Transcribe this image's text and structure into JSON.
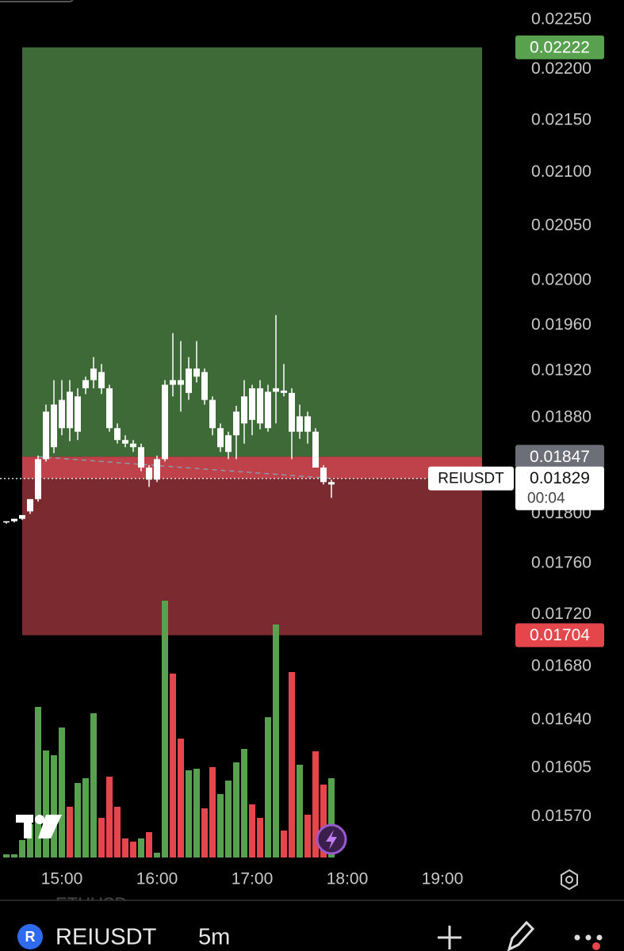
{
  "symbol": "REIUSDT",
  "interval": "5m",
  "watermark": "ETHUSD",
  "chart_data": {
    "type": "candlestick",
    "x": [
      865,
      870,
      875,
      880,
      885,
      890,
      895,
      900,
      905,
      910,
      915,
      920,
      925,
      930,
      935,
      940,
      945,
      950,
      955,
      960,
      965,
      970,
      975,
      980,
      985,
      990,
      995,
      1000,
      1005,
      1010,
      1015,
      1020,
      1025,
      1030,
      1035,
      1040,
      1045,
      1050,
      1055,
      1060,
      1065,
      1070
    ],
    "open": [
      0.01793,
      0.01794,
      0.01796,
      0.01802,
      0.01812,
      0.01845,
      0.01855,
      0.01871,
      0.01871,
      0.01898,
      0.01905,
      0.01912,
      0.01919,
      0.01905,
      0.01871,
      0.01861,
      0.01858,
      0.01855,
      0.01838,
      0.01828,
      0.01845,
      0.01908,
      0.01912,
      0.01901,
      0.01922,
      0.01919,
      0.01895,
      0.01871,
      0.01865,
      0.01865,
      0.01898,
      0.01878,
      0.01905,
      0.01902,
      0.01902,
      0.01903,
      0.01901,
      0.01881,
      0.01881,
      0.01868,
      0.01838,
      0.01826
    ],
    "high": [
      0.01794,
      0.01796,
      0.01799,
      0.01812,
      0.01848,
      0.01891,
      0.01912,
      0.01912,
      0.01912,
      0.01905,
      0.01915,
      0.01932,
      0.01926,
      0.01908,
      0.01875,
      0.01865,
      0.01861,
      0.01858,
      0.0184,
      0.01848,
      0.01912,
      0.01953,
      0.01946,
      0.01932,
      0.01946,
      0.01922,
      0.01898,
      0.01875,
      0.01868,
      0.0189,
      0.01912,
      0.01908,
      0.01912,
      0.01908,
      0.01969,
      0.01926,
      0.01905,
      0.01891,
      0.01885,
      0.01871,
      0.0184,
      0.01828
    ],
    "low": [
      0.01792,
      0.01793,
      0.01795,
      0.018,
      0.0181,
      0.01843,
      0.0185,
      0.01865,
      0.0186,
      0.01861,
      0.019,
      0.01905,
      0.019,
      0.01868,
      0.01858,
      0.01855,
      0.01851,
      0.01835,
      0.01822,
      0.01826,
      0.01843,
      0.01898,
      0.01885,
      0.01895,
      0.0191,
      0.01891,
      0.01865,
      0.01851,
      0.01845,
      0.01845,
      0.01858,
      0.01865,
      0.0187,
      0.01868,
      0.01875,
      0.01898,
      0.01845,
      0.01862,
      0.01858,
      0.01838,
      0.01824,
      0.01813
    ],
    "close": [
      0.01794,
      0.01796,
      0.01799,
      0.01812,
      0.01845,
      0.01885,
      0.01891,
      0.01895,
      0.01902,
      0.01868,
      0.01912,
      0.01922,
      0.01905,
      0.01871,
      0.01861,
      0.01858,
      0.01855,
      0.01838,
      0.01828,
      0.01845,
      0.01908,
      0.01912,
      0.01908,
      0.01922,
      0.01915,
      0.01895,
      0.01871,
      0.01855,
      0.01851,
      0.01885,
      0.01875,
      0.01905,
      0.01875,
      0.01871,
      0.01905,
      0.01901,
      0.01868,
      0.01868,
      0.01868,
      0.01838,
      0.01826,
      0.01824
    ],
    "candle_color": "#ffffff",
    "xlim": [
      861,
      1181
    ],
    "xticks": [
      {
        "value": 900,
        "label": "15:00"
      },
      {
        "value": 960,
        "label": "16:00"
      },
      {
        "value": 1020,
        "label": "17:00"
      },
      {
        "value": 1080,
        "label": "18:00"
      },
      {
        "value": 1140,
        "label": "19:00"
      }
    ],
    "ylim": [
      0.01538,
      0.0227
    ],
    "log_scale": true,
    "yticks": [
      {
        "value": 0.0225,
        "label": "0.02250"
      },
      {
        "value": 0.022,
        "label": "0.02200"
      },
      {
        "value": 0.0215,
        "label": "0.02150"
      },
      {
        "value": 0.021,
        "label": "0.02100"
      },
      {
        "value": 0.0205,
        "label": "0.02050"
      },
      {
        "value": 0.02,
        "label": "0.02000"
      },
      {
        "value": 0.0196,
        "label": "0.01960"
      },
      {
        "value": 0.0192,
        "label": "0.01920"
      },
      {
        "value": 0.0188,
        "label": "0.01880"
      },
      {
        "value": 0.018,
        "label": "0.01800"
      },
      {
        "value": 0.0176,
        "label": "0.01760"
      },
      {
        "value": 0.0172,
        "label": "0.01720"
      },
      {
        "value": 0.0168,
        "label": "0.01680"
      },
      {
        "value": 0.0164,
        "label": "0.01640"
      },
      0.01605,
      {
        "value": 0.0157,
        "label": "0.01570"
      }
    ],
    "volume": {
      "values": [
        4,
        4,
        22,
        42,
        190,
        135,
        129,
        164,
        64,
        94,
        100,
        182,
        50,
        102,
        64,
        24,
        20,
        24,
        32,
        6,
        324,
        232,
        150,
        110,
        112,
        62,
        114,
        80,
        97,
        120,
        137,
        67,
        50,
        177,
        294,
        34,
        234,
        117,
        54,
        134,
        92,
        100
      ],
      "colors": [
        "#58a14f",
        "#58a14f",
        "#58a14f",
        "#58a14f",
        "#58a14f",
        "#58a14f",
        "#58a14f",
        "#58a14f",
        "#e5464c",
        "#58a14f",
        "#58a14f",
        "#58a14f",
        "#e5464c",
        "#e5464c",
        "#e5464c",
        "#e5464c",
        "#e5464c",
        "#58a14f",
        "#e5464c",
        "#58a14f",
        "#58a14f",
        "#e5464c",
        "#e5464c",
        "#58a14f",
        "#58a14f",
        "#e5464c",
        "#e5464c",
        "#58a14f",
        "#58a14f",
        "#58a14f",
        "#58a14f",
        "#e5464c",
        "#e5464c",
        "#58a14f",
        "#58a14f",
        "#e5464c",
        "#e5464c",
        "#58a14f",
        "#e5464c",
        "#e5464c",
        "#e5464c",
        "#58a14f"
      ],
      "vlim": [
        0,
        340
      ]
    },
    "position": {
      "target": 0.02222,
      "entry": 0.01847,
      "stop": 0.01704,
      "profit_color": "#3e6a38",
      "loss_color": "#7b2a2f"
    },
    "last_price": {
      "symbol": "REIUSDT",
      "value": 0.01829,
      "countdown": "00:04"
    }
  }
}
